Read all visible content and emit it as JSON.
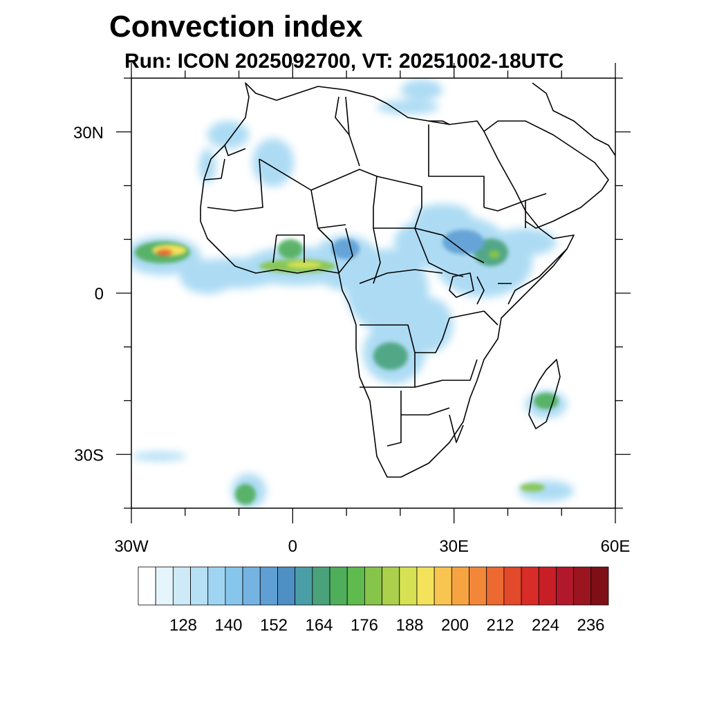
{
  "title": "Convection index",
  "subtitle": "Run: ICON 2025092700,  VT: 20251002-18UTC",
  "map": {
    "lon_range": [
      -30,
      60
    ],
    "lat_range": [
      -40,
      40
    ],
    "y_axis_labels": [
      {
        "lat": 30,
        "label": "30N"
      },
      {
        "lat": 0,
        "label": "0"
      },
      {
        "lat": -30,
        "label": "30S"
      }
    ],
    "x_axis_labels": [
      {
        "lon": -30,
        "label": "30W"
      },
      {
        "lon": 0,
        "label": "0"
      },
      {
        "lon": 30,
        "label": "30E"
      },
      {
        "lon": 60,
        "label": "60E"
      }
    ]
  },
  "colorbar": {
    "colors": [
      "#ffffff",
      "#e6f4fb",
      "#cfeaf7",
      "#b7e0f5",
      "#9fd5f2",
      "#87c6ec",
      "#75b4e2",
      "#5f9fd4",
      "#4e8fc4",
      "#4a9ea6",
      "#4aa27b",
      "#4fae5a",
      "#5fbb4d",
      "#86c44a",
      "#acd04b",
      "#d6e153",
      "#f4e35a",
      "#f8c650",
      "#f6a442",
      "#f2873a",
      "#ec6931",
      "#e3492b",
      "#d82c28",
      "#c81f27",
      "#b2182b",
      "#9a1520",
      "#7f0f17"
    ],
    "labels": [
      "128",
      "140",
      "152",
      "164",
      "176",
      "188",
      "200",
      "212",
      "224",
      "236"
    ]
  }
}
